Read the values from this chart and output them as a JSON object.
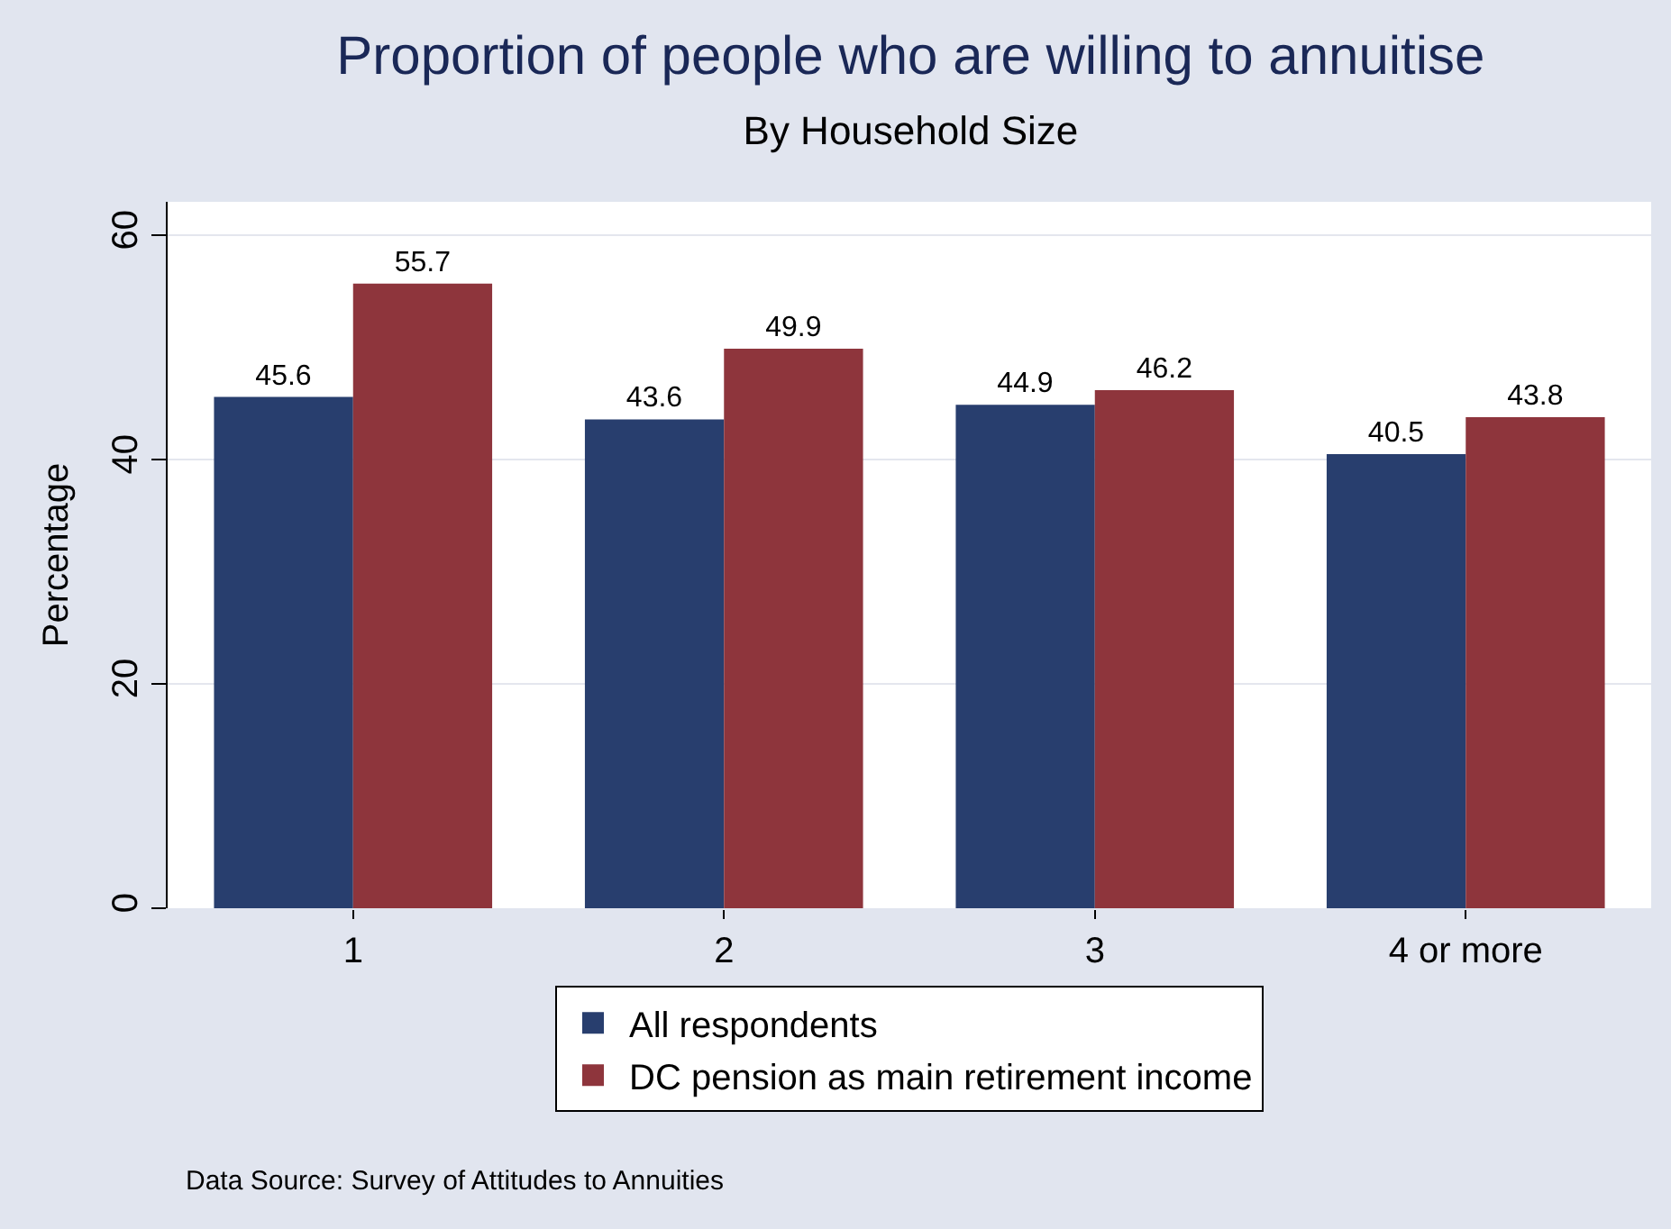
{
  "chart_data": {
    "type": "bar",
    "title": "Proportion of people who are willing to annuitise",
    "subtitle": "By Household Size",
    "ylabel": "Percentage",
    "categories": [
      "1",
      "2",
      "3",
      "4 or more"
    ],
    "series": [
      {
        "name": "All respondents",
        "color": "#283e6e",
        "values": [
          45.6,
          43.6,
          44.9,
          40.5
        ]
      },
      {
        "name": "DC pension as main retirement income",
        "color": "#8e353c",
        "values": [
          55.7,
          49.9,
          46.2,
          43.8
        ]
      }
    ],
    "ylim": [
      0,
      63
    ],
    "yticks": [
      0,
      20,
      40,
      60
    ],
    "grid": "y",
    "legend": "bottom",
    "data_labels": true,
    "annotations": [
      "Data Source: Survey of Attitudes to Annuities"
    ]
  }
}
